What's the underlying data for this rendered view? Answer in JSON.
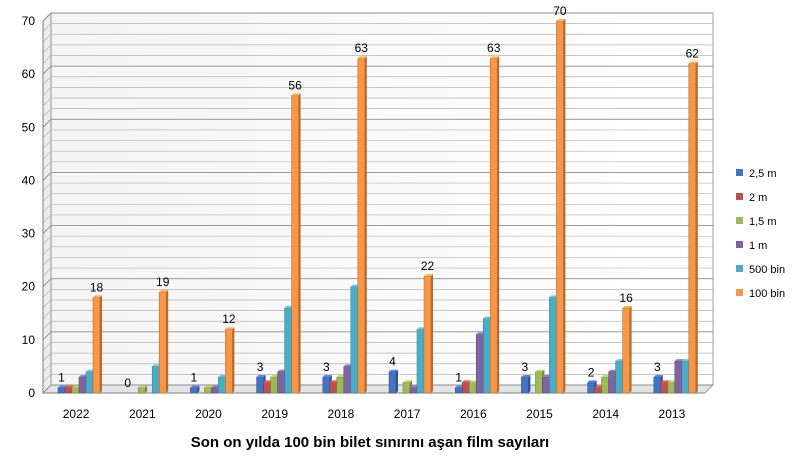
{
  "chart_data": {
    "type": "bar",
    "title": "Son on yılda 100 bin bilet sınırını aşan film sayıları",
    "xlabel": "",
    "ylabel": "",
    "categories": [
      "2022",
      "2021",
      "2020",
      "2019",
      "2018",
      "2017",
      "2016",
      "2015",
      "2014",
      "2013"
    ],
    "ylim": [
      0,
      70
    ],
    "yticks": [
      0,
      10,
      20,
      30,
      40,
      50,
      60,
      70
    ],
    "grid": true,
    "legend_position": "right",
    "series": [
      {
        "name": "2,5 m",
        "color": "#4472C4",
        "values": [
          1,
          0,
          1,
          3,
          3,
          4,
          1,
          3,
          2,
          3
        ]
      },
      {
        "name": "2 m",
        "color": "#C0504D",
        "values": [
          1,
          0,
          0,
          2,
          2,
          0,
          2,
          0,
          1,
          2
        ]
      },
      {
        "name": "1,5 m",
        "color": "#9BBB59",
        "values": [
          1,
          1,
          1,
          3,
          3,
          2,
          2,
          4,
          3,
          2
        ]
      },
      {
        "name": "1 m",
        "color": "#8064A2",
        "values": [
          3,
          0,
          1,
          4,
          5,
          1,
          11,
          3,
          4,
          6
        ]
      },
      {
        "name": "500 bin",
        "color": "#4BACC6",
        "values": [
          4,
          5,
          3,
          16,
          20,
          12,
          14,
          18,
          6,
          6
        ]
      },
      {
        "name": "100 bin",
        "color": "#F79646",
        "values": [
          18,
          19,
          12,
          56,
          63,
          22,
          63,
          70,
          16,
          62
        ]
      }
    ],
    "labeled_series": [
      "2,5 m",
      "100 bin"
    ]
  }
}
